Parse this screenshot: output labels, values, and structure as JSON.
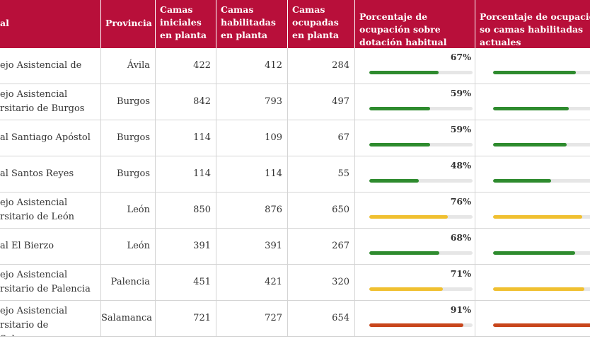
{
  "header": {
    "col_hospital": "al",
    "col_provincia": "Provincia",
    "col_camas_iniciales": "Camas iniciales en planta",
    "col_camas_habilitadas": "Camas habilitadas en planta",
    "col_camas_ocupadas": "Camas ocupadas en planta",
    "col_pct_dotacion": "Porcentaje de ocupación sobre dotación habitual",
    "col_pct_habilitadas": "Porcentaje de ocupación so camas habilitadas actuales"
  },
  "colors": {
    "header_bg": "#b80f3a",
    "bar_green": "#2e8b2e",
    "bar_yellow": "#f0c030",
    "bar_red": "#c8461c",
    "bar_track": "#e6e6e6"
  },
  "rows": [
    {
      "hospital": "ejo Asistencial de",
      "provincia": "Ávila",
      "iniciales": "422",
      "habilitadas": "412",
      "ocupadas": "284",
      "pct_dotacion": "67%",
      "pct_dotacion_value": 67,
      "pct_dotacion_color": "green",
      "pct_habilitadas_value": 69,
      "pct_habilitadas_color": "green"
    },
    {
      "hospital": "ejo Asistencial rsitario de Burgos",
      "provincia": "Burgos",
      "iniciales": "842",
      "habilitadas": "793",
      "ocupadas": "497",
      "pct_dotacion": "59%",
      "pct_dotacion_value": 59,
      "pct_dotacion_color": "green",
      "pct_habilitadas_value": 63,
      "pct_habilitadas_color": "green"
    },
    {
      "hospital": "al Santiago Apóstol",
      "provincia": "Burgos",
      "iniciales": "114",
      "habilitadas": "109",
      "ocupadas": "67",
      "pct_dotacion": "59%",
      "pct_dotacion_value": 59,
      "pct_dotacion_color": "green",
      "pct_habilitadas_value": 61,
      "pct_habilitadas_color": "green"
    },
    {
      "hospital": "al Santos Reyes",
      "provincia": "Burgos",
      "iniciales": "114",
      "habilitadas": "114",
      "ocupadas": "55",
      "pct_dotacion": "48%",
      "pct_dotacion_value": 48,
      "pct_dotacion_color": "green",
      "pct_habilitadas_value": 48,
      "pct_habilitadas_color": "green"
    },
    {
      "hospital": "ejo Asistencial rsitario de León",
      "provincia": "León",
      "iniciales": "850",
      "habilitadas": "876",
      "ocupadas": "650",
      "pct_dotacion": "76%",
      "pct_dotacion_value": 76,
      "pct_dotacion_color": "yellow",
      "pct_habilitadas_value": 74,
      "pct_habilitadas_color": "yellow"
    },
    {
      "hospital": "al El Bierzo",
      "provincia": "León",
      "iniciales": "391",
      "habilitadas": "391",
      "ocupadas": "267",
      "pct_dotacion": "68%",
      "pct_dotacion_value": 68,
      "pct_dotacion_color": "green",
      "pct_habilitadas_value": 68,
      "pct_habilitadas_color": "green"
    },
    {
      "hospital": "ejo Asistencial rsitario de Palencia",
      "provincia": "Palencia",
      "iniciales": "451",
      "habilitadas": "421",
      "ocupadas": "320",
      "pct_dotacion": "71%",
      "pct_dotacion_value": 71,
      "pct_dotacion_color": "yellow",
      "pct_habilitadas_value": 76,
      "pct_habilitadas_color": "yellow"
    },
    {
      "hospital": "ejo Asistencial rsitario de Salamanca",
      "provincia": "Salamanca",
      "iniciales": "721",
      "habilitadas": "727",
      "ocupadas": "654",
      "pct_dotacion": "91%",
      "pct_dotacion_value": 91,
      "pct_dotacion_color": "red",
      "pct_habilitadas_value": 90,
      "pct_habilitadas_color": "red"
    }
  ]
}
